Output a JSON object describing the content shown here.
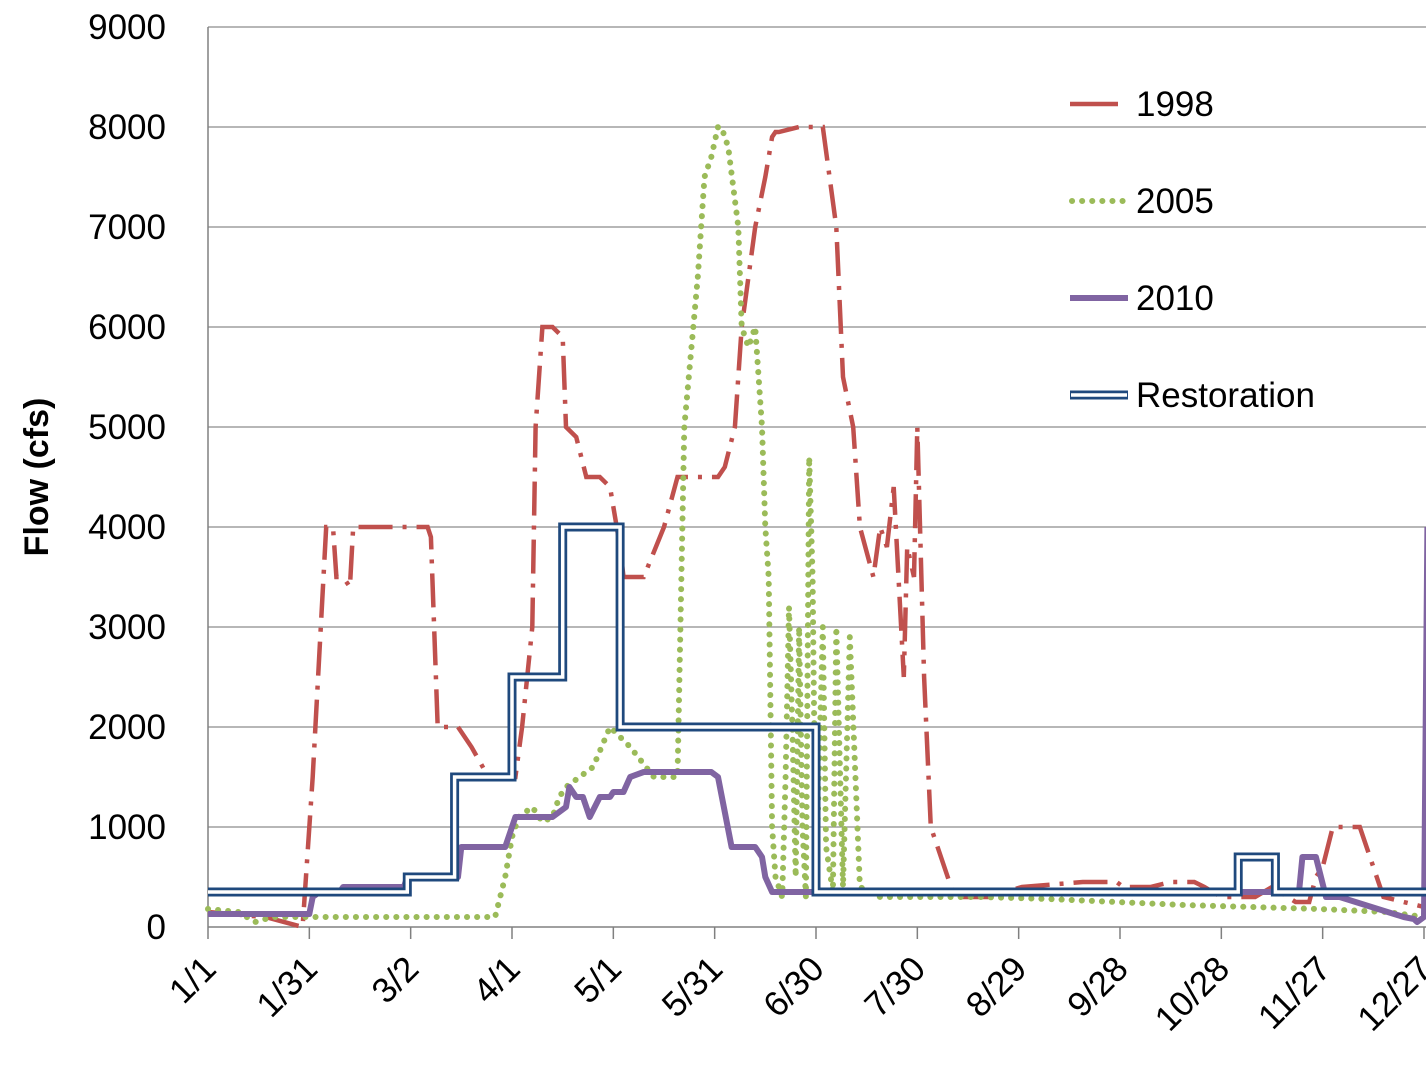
{
  "chart_data": {
    "type": "line",
    "title": "",
    "xlabel": "",
    "ylabel": "Flow (cfs)",
    "ylim": [
      0,
      9000
    ],
    "yticks": [
      "0",
      "1000",
      "2000",
      "3000",
      "4000",
      "5000",
      "6000",
      "7000",
      "8000",
      "9000"
    ],
    "xlim": [
      1,
      361
    ],
    "xtick_labels": [
      "1/1",
      "1/31",
      "3/2",
      "4/1",
      "5/1",
      "5/31",
      "6/30",
      "7/30",
      "8/29",
      "9/28",
      "10/28",
      "11/27",
      "12/27"
    ],
    "xtick_days": [
      1,
      31,
      61,
      91,
      121,
      151,
      181,
      211,
      241,
      271,
      301,
      331,
      361
    ],
    "grid": "horizontal",
    "legend_position": "top-right",
    "series": [
      {
        "name": "1998",
        "color": "#c0504d",
        "style": "dash-dot",
        "x": [
          1,
          8,
          14,
          18,
          29,
          32,
          36,
          38,
          39,
          41,
          43,
          44,
          49,
          50,
          55,
          61,
          66,
          67,
          69,
          72,
          75,
          79,
          84,
          88,
          92,
          94,
          97,
          98,
          100,
          102,
          103,
          106,
          107,
          110,
          113,
          115,
          117,
          120,
          123,
          124,
          126,
          130,
          136,
          140,
          141,
          143,
          145,
          152,
          154,
          157,
          159,
          163,
          166,
          168,
          169,
          170,
          176,
          177,
          183,
          187,
          189,
          192,
          194,
          198,
          200,
          202,
          204,
          207,
          208,
          210,
          211,
          213,
          215,
          222,
          232,
          242,
          260,
          270,
          272,
          280,
          286,
          290,
          293,
          296,
          301,
          311,
          316,
          323,
          327,
          329,
          331,
          334,
          335,
          339,
          342,
          349,
          355,
          361
        ],
        "y": [
          150,
          130,
          110,
          100,
          0,
          1500,
          4000,
          4000,
          3500,
          3500,
          3400,
          4000,
          4000,
          4000,
          4000,
          4000,
          4000,
          3900,
          2000,
          2000,
          2000,
          1800,
          1500,
          1500,
          1500,
          2000,
          3000,
          5000,
          6000,
          6000,
          6000,
          5900,
          5000,
          4900,
          4500,
          4500,
          4500,
          4400,
          3800,
          3500,
          3500,
          3500,
          4000,
          4500,
          4500,
          4500,
          4500,
          4500,
          4600,
          5000,
          6000,
          7000,
          7500,
          7900,
          7950,
          7950,
          8000,
          8000,
          8000,
          7000,
          5500,
          5000,
          4000,
          3500,
          4000,
          3800,
          4400,
          2500,
          3800,
          3500,
          5000,
          2500,
          1000,
          300,
          300,
          400,
          450,
          450,
          400,
          400,
          450,
          450,
          450,
          400,
          300,
          300,
          400,
          250,
          250,
          500,
          600,
          1000,
          1000,
          1000,
          1000,
          300,
          250,
          200
        ]
      },
      {
        "name": "2005",
        "color": "#9bbb59",
        "style": "dotted",
        "x": [
          1,
          10,
          15,
          20,
          32,
          55,
          80,
          84,
          86,
          89,
          91,
          93,
          97,
          100,
          103,
          105,
          107,
          111,
          115,
          120,
          126,
          133,
          136,
          140,
          142,
          146,
          148,
          150,
          152,
          153,
          155,
          158,
          159,
          161,
          163,
          165,
          166,
          167,
          168,
          169,
          171,
          172,
          173,
          174,
          175,
          176,
          177,
          178,
          179,
          180,
          181,
          183,
          184,
          186,
          187,
          189,
          191,
          194,
          200,
          210,
          230,
          250,
          270,
          290,
          310,
          330,
          350,
          361
        ],
        "y": [
          180,
          150,
          50,
          100,
          100,
          100,
          100,
          100,
          100,
          500,
          900,
          1100,
          1200,
          1050,
          1100,
          1300,
          1400,
          1500,
          1600,
          2000,
          1800,
          1500,
          1500,
          1500,
          5000,
          6500,
          7500,
          7700,
          8000,
          8000,
          7800,
          7000,
          6000,
          5800,
          6000,
          5000,
          4000,
          3500,
          1000,
          500,
          300,
          1500,
          3200,
          2000,
          500,
          3000,
          1000,
          300,
          4700,
          3500,
          400,
          3000,
          800,
          350,
          3000,
          400,
          2900,
          400,
          300,
          300,
          300,
          280,
          250,
          220,
          200,
          180,
          150,
          100
        ]
      },
      {
        "name": "2010",
        "color": "#8064a2",
        "style": "solid-thick",
        "x": [
          1,
          31,
          32,
          34,
          40,
          41,
          50,
          59,
          60,
          71,
          75,
          76,
          85,
          89,
          91,
          92,
          98,
          101,
          103,
          107,
          108,
          110,
          112,
          113,
          114,
          117,
          120,
          121,
          124,
          126,
          130,
          134,
          140,
          144,
          148,
          150,
          152,
          156,
          158,
          159,
          163,
          165,
          166,
          168,
          170,
          172,
          174,
          176,
          181,
          182,
          200,
          250,
          300,
          316,
          319,
          320,
          324,
          325,
          329,
          332,
          336,
          355,
          358,
          359,
          361,
          362
        ],
        "y": [
          130,
          130,
          300,
          350,
          350,
          400,
          400,
          400,
          500,
          500,
          500,
          800,
          800,
          800,
          1000,
          1100,
          1100,
          1100,
          1100,
          1200,
          1400,
          1300,
          1300,
          1200,
          1100,
          1300,
          1300,
          1350,
          1350,
          1500,
          1550,
          1550,
          1550,
          1550,
          1550,
          1550,
          1500,
          800,
          800,
          800,
          800,
          700,
          500,
          350,
          350,
          350,
          350,
          350,
          350,
          350,
          350,
          350,
          350,
          350,
          350,
          350,
          350,
          700,
          700,
          300,
          300,
          100,
          80,
          50,
          100,
          4000
        ]
      },
      {
        "name": "Restoration",
        "color": "#1f497d",
        "style": "double",
        "x": [
          1,
          31,
          31,
          60,
          60,
          74,
          74,
          91,
          91,
          106,
          106,
          123,
          123,
          181,
          181,
          306,
          306,
          317,
          317,
          362
        ],
        "y": [
          350,
          350,
          350,
          350,
          500,
          500,
          1500,
          1500,
          2500,
          2500,
          4000,
          4000,
          2000,
          2000,
          350,
          350,
          700,
          700,
          350,
          350
        ]
      }
    ]
  }
}
